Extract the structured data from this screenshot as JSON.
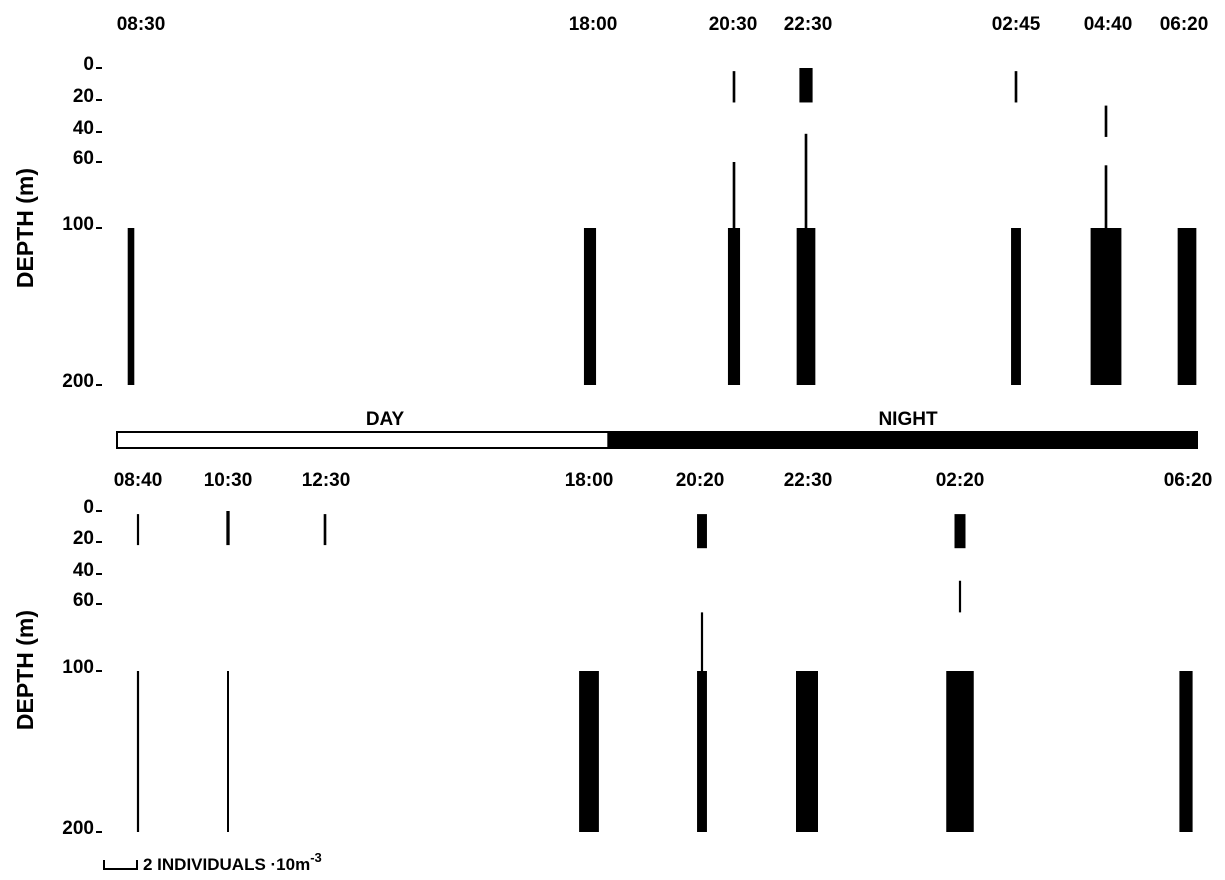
{
  "chart_data": [
    {
      "type": "bar",
      "chart_kind": "kite diagram (vertical depth-abundance bars per sampling time)",
      "ylabel": "DEPTH (m)",
      "yticks": [
        0,
        20,
        40,
        60,
        100,
        200
      ],
      "y_direction": "depth increases downward",
      "stations": [
        {
          "time": "08:30",
          "samples": [
            {
              "depth_from": 100,
              "depth_to": 200,
              "abundance": 0.3
            }
          ]
        },
        {
          "time": "18:00",
          "samples": [
            {
              "depth_from": 100,
              "depth_to": 200,
              "abundance": 0.55
            }
          ]
        },
        {
          "time": "20:30",
          "samples": [
            {
              "depth_from": 2,
              "depth_to": 22,
              "abundance": 0.12
            },
            {
              "depth_from": 60,
              "depth_to": 100,
              "abundance": 0.12
            },
            {
              "depth_from": 100,
              "depth_to": 200,
              "abundance": 0.55
            }
          ]
        },
        {
          "time": "22:30",
          "samples": [
            {
              "depth_from": 0,
              "depth_to": 22,
              "abundance": 0.6
            },
            {
              "depth_from": 42,
              "depth_to": 100,
              "abundance": 0.12
            },
            {
              "depth_from": 100,
              "depth_to": 200,
              "abundance": 0.85
            }
          ]
        },
        {
          "time": "02:45",
          "samples": [
            {
              "depth_from": 2,
              "depth_to": 22,
              "abundance": 0.12
            },
            {
              "depth_from": 100,
              "depth_to": 200,
              "abundance": 0.45
            }
          ]
        },
        {
          "time": "04:40",
          "samples": [
            {
              "depth_from": 24,
              "depth_to": 44,
              "abundance": 0.12
            },
            {
              "depth_from": 62,
              "depth_to": 100,
              "abundance": 0.12
            },
            {
              "depth_from": 100,
              "depth_to": 200,
              "abundance": 1.4
            }
          ]
        },
        {
          "time": "06:20",
          "samples": [
            {
              "depth_from": 100,
              "depth_to": 200,
              "abundance": 0.85
            }
          ]
        }
      ]
    },
    {
      "type": "bar",
      "chart_kind": "kite diagram (vertical depth-abundance bars per sampling time)",
      "ylabel": "DEPTH (m)",
      "yticks": [
        0,
        20,
        40,
        60,
        100,
        200
      ],
      "y_direction": "depth increases downward",
      "stations": [
        {
          "time": "08:40",
          "samples": [
            {
              "depth_from": 2,
              "depth_to": 22,
              "abundance": 0.1
            },
            {
              "depth_from": 100,
              "depth_to": 200,
              "abundance": 0.1
            }
          ]
        },
        {
          "time": "10:30",
          "samples": [
            {
              "depth_from": 0,
              "depth_to": 22,
              "abundance": 0.15
            },
            {
              "depth_from": 100,
              "depth_to": 200,
              "abundance": 0.07
            }
          ]
        },
        {
          "time": "12:30",
          "samples": [
            {
              "depth_from": 2,
              "depth_to": 22,
              "abundance": 0.12
            }
          ]
        },
        {
          "time": "18:00",
          "samples": [
            {
              "depth_from": 100,
              "depth_to": 200,
              "abundance": 0.9
            }
          ]
        },
        {
          "time": "20:20",
          "samples": [
            {
              "depth_from": 2,
              "depth_to": 24,
              "abundance": 0.45
            },
            {
              "depth_from": 65,
              "depth_to": 100,
              "abundance": 0.1
            },
            {
              "depth_from": 100,
              "depth_to": 200,
              "abundance": 0.45
            }
          ]
        },
        {
          "time": "22:30",
          "samples": [
            {
              "depth_from": 100,
              "depth_to": 200,
              "abundance": 1.0
            }
          ]
        },
        {
          "time": "02:20",
          "samples": [
            {
              "depth_from": 2,
              "depth_to": 24,
              "abundance": 0.5
            },
            {
              "depth_from": 45,
              "depth_to": 65,
              "abundance": 0.1
            },
            {
              "depth_from": 100,
              "depth_to": 200,
              "abundance": 1.25
            }
          ]
        },
        {
          "time": "06:20",
          "samples": [
            {
              "depth_from": 100,
              "depth_to": 200,
              "abundance": 0.6
            }
          ]
        }
      ]
    }
  ],
  "day_night_bar": {
    "day_label": "DAY",
    "night_label": "NIGHT",
    "day_fraction": 0.455,
    "day_color": "#ffffff",
    "night_color": "#000000"
  },
  "scale_legend": {
    "value": 2,
    "label_main": "2 INDIVIDUALS ·10m",
    "label_sup": "-3"
  },
  "colors": {
    "ink": "#000000",
    "background": "#ffffff"
  }
}
